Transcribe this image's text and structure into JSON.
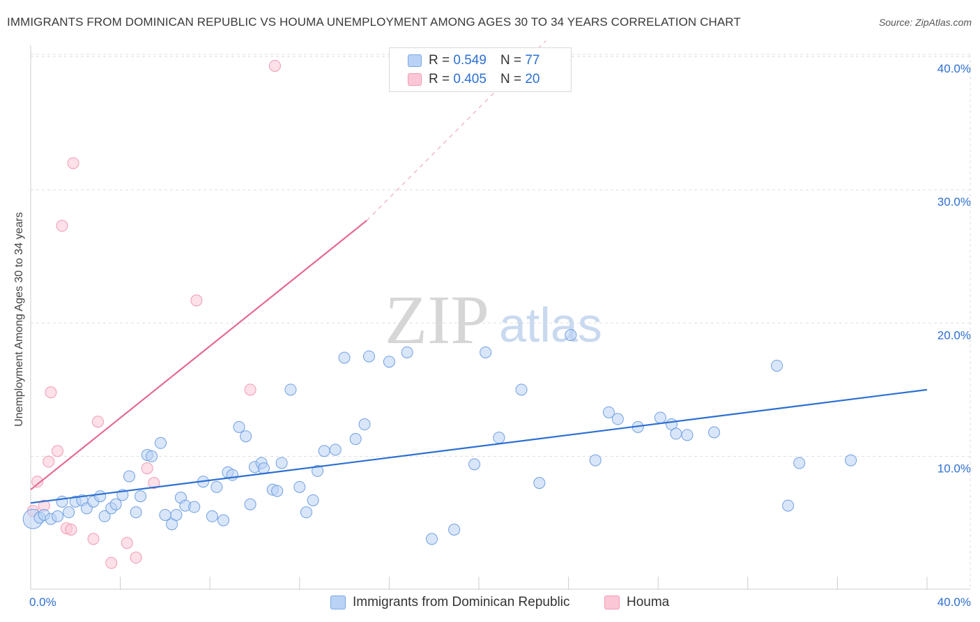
{
  "header": {
    "title": "IMMIGRANTS FROM DOMINICAN REPUBLIC VS HOUMA UNEMPLOYMENT AMONG AGES 30 TO 34 YEARS CORRELATION CHART",
    "source": "Source: ZipAtlas.com"
  },
  "watermark": {
    "zip": "ZIP",
    "atlas": "atlas"
  },
  "legend": {
    "r_label": "R =",
    "n_label": "N =",
    "series": [
      {
        "name": "Immigrants from Dominican Republic",
        "r": "0.549",
        "n": "77",
        "fill": "#b9d2f5",
        "stroke": "#7aa7e6"
      },
      {
        "name": "Houma",
        "r": "0.405",
        "n": "20",
        "fill": "#fbc7d6",
        "stroke": "#ee9ab4"
      }
    ]
  },
  "chart_data": {
    "type": "scatter",
    "title": "IMMIGRANTS FROM DOMINICAN REPUBLIC VS HOUMA UNEMPLOYMENT AMONG AGES 30 TO 34 YEARS CORRELATION CHART",
    "xlabel": "",
    "ylabel": "Unemployment Among Ages 30 to 34 years",
    "xlim": [
      0,
      40
    ],
    "ylim": [
      0,
      41
    ],
    "x_tick_labels": [
      "0.0%",
      "40.0%"
    ],
    "y_ticks": [
      10,
      20,
      30,
      40
    ],
    "y_tick_labels": [
      "10.0%",
      "20.0%",
      "30.0%",
      "40.0%"
    ],
    "grid": true,
    "legend_position": "top-center",
    "colors": {
      "blue": "#2c6fd1",
      "pink": "#e4698f",
      "blue_fill": "#b9d2f5",
      "pink_fill": "#fbc7d6"
    },
    "series": [
      {
        "name": "Immigrants from Dominican Republic",
        "color": "#2c6fd1",
        "trend": {
          "x1": 0,
          "y1": 6.5,
          "x2": 40,
          "y2": 15.0
        },
        "points": [
          [
            0.1,
            5.3
          ],
          [
            0.4,
            5.4
          ],
          [
            0.6,
            5.6
          ],
          [
            0.9,
            5.3
          ],
          [
            1.2,
            5.5
          ],
          [
            1.4,
            6.6
          ],
          [
            1.7,
            5.8
          ],
          [
            2.0,
            6.6
          ],
          [
            2.3,
            6.7
          ],
          [
            2.5,
            6.1
          ],
          [
            2.8,
            6.6
          ],
          [
            3.1,
            7.0
          ],
          [
            3.3,
            5.5
          ],
          [
            3.6,
            6.1
          ],
          [
            3.8,
            6.4
          ],
          [
            4.1,
            7.1
          ],
          [
            4.4,
            8.5
          ],
          [
            4.7,
            5.8
          ],
          [
            4.9,
            7.0
          ],
          [
            5.2,
            10.1
          ],
          [
            5.4,
            10.0
          ],
          [
            5.8,
            11.0
          ],
          [
            6.0,
            5.6
          ],
          [
            6.3,
            4.9
          ],
          [
            6.5,
            5.6
          ],
          [
            6.7,
            6.9
          ],
          [
            6.9,
            6.3
          ],
          [
            7.3,
            6.2
          ],
          [
            7.7,
            8.1
          ],
          [
            8.1,
            5.5
          ],
          [
            8.3,
            7.7
          ],
          [
            8.6,
            5.2
          ],
          [
            8.8,
            8.8
          ],
          [
            9.0,
            8.6
          ],
          [
            9.3,
            12.2
          ],
          [
            9.6,
            11.5
          ],
          [
            9.8,
            6.4
          ],
          [
            10.0,
            9.2
          ],
          [
            10.3,
            9.5
          ],
          [
            10.4,
            9.1
          ],
          [
            10.8,
            7.5
          ],
          [
            11.0,
            7.4
          ],
          [
            11.2,
            9.5
          ],
          [
            11.6,
            15.0
          ],
          [
            12.0,
            7.7
          ],
          [
            12.3,
            5.8
          ],
          [
            12.6,
            6.7
          ],
          [
            12.8,
            8.9
          ],
          [
            13.1,
            10.4
          ],
          [
            13.6,
            10.5
          ],
          [
            14.0,
            17.4
          ],
          [
            14.5,
            11.3
          ],
          [
            14.9,
            12.4
          ],
          [
            15.1,
            17.5
          ],
          [
            16.0,
            17.1
          ],
          [
            16.8,
            17.8
          ],
          [
            17.9,
            3.8
          ],
          [
            18.9,
            4.5
          ],
          [
            19.8,
            9.4
          ],
          [
            20.3,
            17.8
          ],
          [
            20.9,
            11.4
          ],
          [
            21.9,
            15.0
          ],
          [
            22.7,
            8.0
          ],
          [
            24.1,
            19.1
          ],
          [
            25.2,
            9.7
          ],
          [
            25.8,
            13.3
          ],
          [
            26.2,
            12.8
          ],
          [
            27.1,
            12.2
          ],
          [
            28.1,
            12.9
          ],
          [
            28.6,
            12.4
          ],
          [
            28.8,
            11.7
          ],
          [
            29.3,
            11.6
          ],
          [
            30.5,
            11.8
          ],
          [
            33.3,
            16.8
          ],
          [
            33.8,
            6.3
          ],
          [
            34.3,
            9.5
          ],
          [
            36.6,
            9.7
          ]
        ]
      },
      {
        "name": "Houma",
        "color": "#e4698f",
        "trend": {
          "x1": 0,
          "y1": 7.5,
          "x2": 15.0,
          "y2": 27.7,
          "dash_x2": 23.0,
          "dash_y2": 41.2
        },
        "points": [
          [
            0.1,
            5.9
          ],
          [
            0.3,
            8.1
          ],
          [
            0.6,
            6.3
          ],
          [
            0.8,
            9.6
          ],
          [
            0.9,
            14.8
          ],
          [
            1.2,
            10.4
          ],
          [
            1.4,
            27.3
          ],
          [
            1.6,
            4.6
          ],
          [
            1.8,
            4.5
          ],
          [
            1.9,
            32.0
          ],
          [
            2.8,
            3.8
          ],
          [
            3.0,
            12.6
          ],
          [
            3.6,
            2.0
          ],
          [
            4.3,
            3.5
          ],
          [
            4.7,
            2.4
          ],
          [
            5.2,
            9.1
          ],
          [
            5.5,
            8.0
          ],
          [
            7.4,
            21.7
          ],
          [
            9.8,
            15.0
          ],
          [
            10.9,
            39.3
          ]
        ]
      }
    ]
  }
}
